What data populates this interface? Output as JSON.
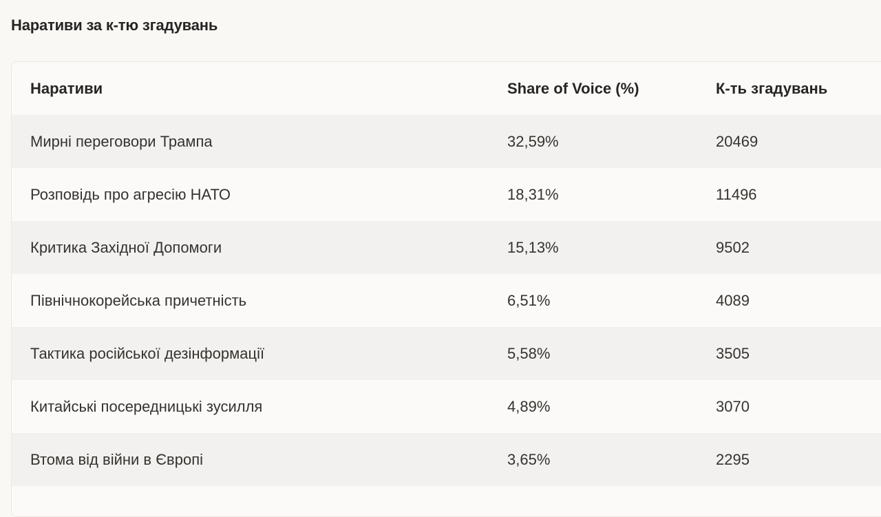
{
  "section": {
    "title": "Наративи за к-тю згадувань"
  },
  "table": {
    "headers": {
      "narrative": "Наративи",
      "share": "Share of Voice (%)",
      "count": "К-ть згадувань"
    },
    "rows": [
      {
        "narrative": "Мирні переговори Трампа",
        "share": "32,59%",
        "count": "20469"
      },
      {
        "narrative": "Розповідь про агресію НАТО",
        "share": "18,31%",
        "count": "11496"
      },
      {
        "narrative": "Критика Західної Допомоги",
        "share": "15,13%",
        "count": "9502"
      },
      {
        "narrative": "Північнокорейська причетність",
        "share": "6,51%",
        "count": "4089"
      },
      {
        "narrative": "Тактика російської дезінформації",
        "share": "5,58%",
        "count": "3505"
      },
      {
        "narrative": "Китайські посередницькі зусилля",
        "share": "4,89%",
        "count": "3070"
      },
      {
        "narrative": "Втома від війни в Європі",
        "share": "3,65%",
        "count": "2295"
      }
    ]
  },
  "colors": {
    "page_background": "#faf8f5",
    "row_stripe": "#f3f1ef",
    "row_plain": "#fcfaf8",
    "border": "#ece8e3",
    "text": "#35332f"
  }
}
